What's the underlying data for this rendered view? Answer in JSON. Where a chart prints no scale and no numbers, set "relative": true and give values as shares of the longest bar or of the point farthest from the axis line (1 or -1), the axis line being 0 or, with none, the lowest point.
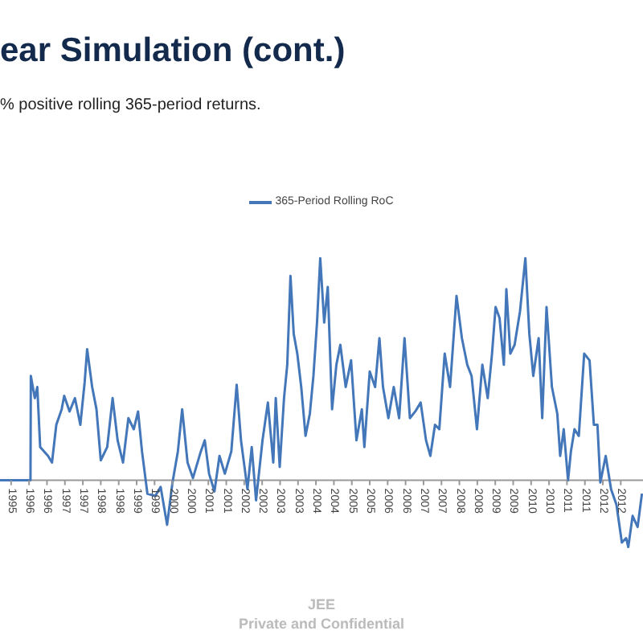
{
  "chart_data": {
    "type": "line",
    "title": "ear Simulation (cont.)",
    "subtitle": "% positive rolling 365-period returns.",
    "annotations": [
      "JEE",
      "Private and Confidential"
    ],
    "relative": true,
    "legend": "top",
    "xlim": [
      1995.19,
      2013.12
    ],
    "xticks": [
      {
        "value": 1995.5,
        "label": "1995"
      },
      {
        "value": 1996,
        "label": "1996"
      },
      {
        "value": 1996.5,
        "label": "1996"
      },
      {
        "value": 1997,
        "label": "1997"
      },
      {
        "value": 1997.5,
        "label": "1997"
      },
      {
        "value": 1998,
        "label": "1998"
      },
      {
        "value": 1998.5,
        "label": "1998"
      },
      {
        "value": 1999,
        "label": "1999"
      },
      {
        "value": 1999.5,
        "label": "1999"
      },
      {
        "value": 2000,
        "label": "2000"
      },
      {
        "value": 2000.5,
        "label": "2000"
      },
      {
        "value": 2001,
        "label": "2001"
      },
      {
        "value": 2001.5,
        "label": "2001"
      },
      {
        "value": 2002,
        "label": "2002"
      },
      {
        "value": 2002.5,
        "label": "2002"
      },
      {
        "value": 2003,
        "label": "2003"
      },
      {
        "value": 2003.5,
        "label": "2003"
      },
      {
        "value": 2004,
        "label": "2004"
      },
      {
        "value": 2004.5,
        "label": "2004"
      },
      {
        "value": 2005,
        "label": "2005"
      },
      {
        "value": 2005.5,
        "label": "2005"
      },
      {
        "value": 2006,
        "label": "2006"
      },
      {
        "value": 2006.5,
        "label": "2006"
      },
      {
        "value": 2007,
        "label": "2007"
      },
      {
        "value": 2007.5,
        "label": "2007"
      },
      {
        "value": 2008,
        "label": "2008"
      },
      {
        "value": 2008.5,
        "label": "2008"
      },
      {
        "value": 2009,
        "label": "2009"
      },
      {
        "value": 2009.5,
        "label": "2009"
      },
      {
        "value": 2010,
        "label": "2010"
      },
      {
        "value": 2010.5,
        "label": "2010"
      },
      {
        "value": 2011,
        "label": "2011"
      },
      {
        "value": 2011.5,
        "label": "2011"
      },
      {
        "value": 2012,
        "label": "2012"
      },
      {
        "value": 2012.5,
        "label": "2012"
      }
    ],
    "x": [
      1995.19,
      1996.04,
      1996.05,
      1996.16,
      1996.23,
      1996.31,
      1996.53,
      1996.64,
      1996.76,
      1996.91,
      1996.98,
      1997.13,
      1997.28,
      1997.43,
      1997.55,
      1997.62,
      1997.76,
      1997.88,
      1998.0,
      1998.18,
      1998.33,
      1998.47,
      1998.62,
      1998.77,
      1998.92,
      1999.04,
      1999.15,
      1999.3,
      1999.52,
      1999.67,
      1999.85,
      2000.0,
      2000.15,
      2000.27,
      2000.42,
      2000.57,
      2000.79,
      2000.9,
      2001.02,
      2001.17,
      2001.31,
      2001.46,
      2001.64,
      2001.79,
      2001.91,
      2002.09,
      2002.21,
      2002.33,
      2002.51,
      2002.66,
      2002.81,
      2002.88,
      2002.99,
      2003.11,
      2003.2,
      2003.29,
      2003.38,
      2003.48,
      2003.59,
      2003.71,
      2003.83,
      2003.93,
      2004.03,
      2004.12,
      2004.23,
      2004.33,
      2004.45,
      2004.57,
      2004.68,
      2004.83,
      2004.98,
      2005.13,
      2005.28,
      2005.35,
      2005.5,
      2005.65,
      2005.77,
      2005.87,
      2006.02,
      2006.17,
      2006.32,
      2006.47,
      2006.62,
      2006.77,
      2006.92,
      2007.07,
      2007.19,
      2007.32,
      2007.44,
      2007.59,
      2007.74,
      2007.92,
      2008.07,
      2008.22,
      2008.34,
      2008.49,
      2008.64,
      2008.79,
      2008.91,
      2009.01,
      2009.12,
      2009.24,
      2009.31,
      2009.42,
      2009.54,
      2009.69,
      2009.84,
      2009.95,
      2010.06,
      2010.21,
      2010.31,
      2010.43,
      2010.58,
      2010.73,
      2010.81,
      2010.91,
      2011.03,
      2011.11,
      2011.21,
      2011.33,
      2011.48,
      2011.63,
      2011.75,
      2011.85,
      2011.93,
      2012.08,
      2012.23,
      2012.38,
      2012.53,
      2012.65,
      2012.71,
      2012.83,
      2012.97,
      2013.09
    ],
    "series": [
      {
        "name": "365-Period Rolling RoC",
        "color": "#4377b9",
        "values": [
          0,
          0,
          0.47,
          0.37,
          0.42,
          0.15,
          0.11,
          0.08,
          0.25,
          0.32,
          0.38,
          0.31,
          0.37,
          0.25,
          0.44,
          0.59,
          0.42,
          0.32,
          0.09,
          0.15,
          0.37,
          0.18,
          0.08,
          0.28,
          0.23,
          0.31,
          0.13,
          -0.06,
          -0.07,
          -0.03,
          -0.2,
          -0.01,
          0.13,
          0.32,
          0.08,
          0.01,
          0.13,
          0.18,
          0.03,
          -0.05,
          0.11,
          0.03,
          0.13,
          0.43,
          0.18,
          -0.04,
          0.15,
          -0.09,
          0.18,
          0.35,
          0.08,
          0.37,
          0.06,
          0.37,
          0.52,
          0.92,
          0.66,
          0.57,
          0.42,
          0.2,
          0.3,
          0.47,
          0.71,
          1.0,
          0.71,
          0.87,
          0.32,
          0.52,
          0.61,
          0.42,
          0.54,
          0.18,
          0.32,
          0.15,
          0.49,
          0.42,
          0.64,
          0.42,
          0.28,
          0.42,
          0.28,
          0.64,
          0.28,
          0.31,
          0.35,
          0.18,
          0.11,
          0.25,
          0.23,
          0.57,
          0.42,
          0.83,
          0.64,
          0.52,
          0.47,
          0.23,
          0.52,
          0.37,
          0.57,
          0.78,
          0.73,
          0.52,
          0.86,
          0.57,
          0.61,
          0.76,
          1.0,
          0.66,
          0.47,
          0.64,
          0.28,
          0.78,
          0.42,
          0.3,
          0.11,
          0.23,
          0.0,
          0.13,
          0.23,
          0.2,
          0.57,
          0.54,
          0.25,
          0.25,
          -0.01,
          0.11,
          -0.04,
          -0.11,
          -0.28,
          -0.26,
          -0.3,
          -0.16,
          -0.21,
          -0.06
        ]
      }
    ]
  }
}
